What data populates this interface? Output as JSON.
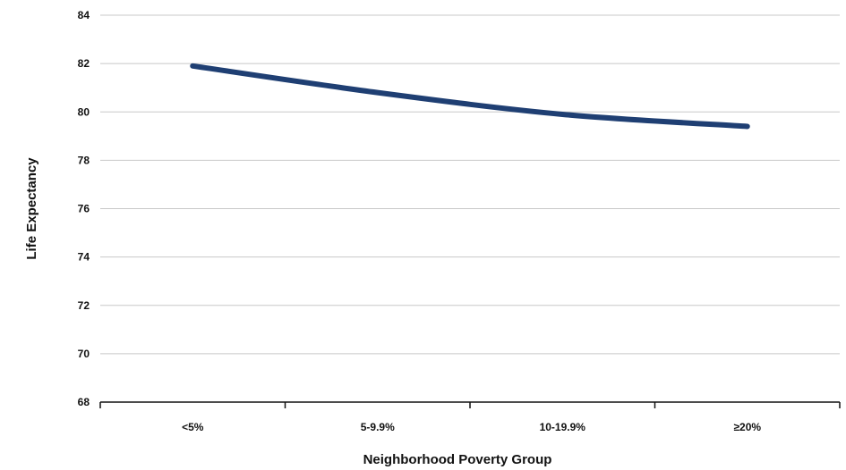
{
  "chart_data": {
    "type": "line",
    "categories": [
      "<5%",
      "5-9.9%",
      "10-19.9%",
      "≥20%"
    ],
    "series": [
      {
        "values": [
          81.9,
          80.8,
          79.9,
          79.4
        ]
      }
    ],
    "xlabel": "Neighborhood Poverty Group",
    "ylabel": "Life Expectancy",
    "ylim": [
      68,
      84
    ],
    "yticks": [
      68,
      70,
      72,
      74,
      76,
      78,
      80,
      82,
      84
    ],
    "grid": true,
    "line_color": "#1f3f73",
    "grid_color": "#c8c8c8",
    "axis_color": "#111111"
  }
}
